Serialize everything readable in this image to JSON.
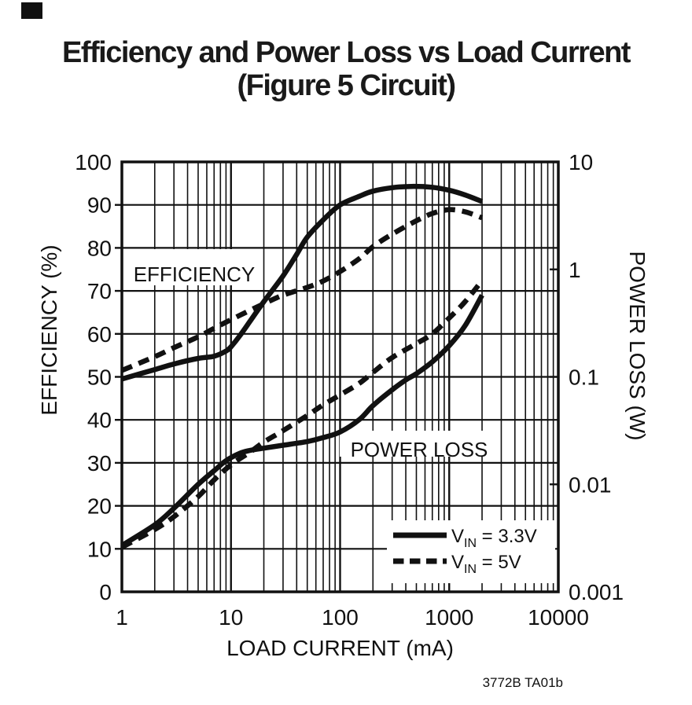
{
  "page": {
    "background": "#ffffff",
    "ink": "#111111",
    "corner_mark": "black-rectangle"
  },
  "title": {
    "line1": "Efficiency and Power Loss vs Load Current",
    "line2": "(Figure 5 Circuit)"
  },
  "caption": "3772B TA01b",
  "axes": {
    "x": {
      "label": "LOAD CURRENT (mA)",
      "scale": "log",
      "min": 1,
      "max": 10000,
      "ticks": [
        "1",
        "10",
        "100",
        "1000",
        "10000"
      ]
    },
    "y_left": {
      "label": "EFFICIENCY (%)",
      "scale": "linear",
      "min": 0,
      "max": 100,
      "ticks": [
        "100",
        "90",
        "80",
        "70",
        "60",
        "50",
        "40",
        "30",
        "20",
        "10",
        "0"
      ]
    },
    "y_right": {
      "label": "POWER LOSS (W)",
      "scale": "log",
      "min": 0.001,
      "max": 10,
      "ticks": [
        "10",
        "1",
        "0.1",
        "0.01",
        "0.001"
      ]
    }
  },
  "plot_labels": {
    "efficiency": "EFFICIENCY",
    "power_loss": "POWER LOSS"
  },
  "legend": {
    "items": [
      {
        "style": "solid",
        "v": "V",
        "sub": "IN",
        "rest": " = 3.3V"
      },
      {
        "style": "dashed",
        "v": "V",
        "sub": "IN",
        "rest": " = 5V"
      }
    ]
  },
  "chart_data": {
    "type": "line",
    "title": "Efficiency and Power Loss vs Load Current (Figure 5 Circuit)",
    "xlabel": "LOAD CURRENT (mA)",
    "x_axis": {
      "scale": "log",
      "range": [
        1,
        10000
      ]
    },
    "y_left_axis": {
      "label": "EFFICIENCY (%)",
      "scale": "linear",
      "range": [
        0,
        100
      ],
      "grid_step": 10
    },
    "y_right_axis": {
      "label": "POWER LOSS (W)",
      "scale": "log",
      "range": [
        0.001,
        10
      ]
    },
    "grid": "full log-x grid, horizontal lines every 10%",
    "legend_position": "inside-bottom-right",
    "series": [
      {
        "name": "Efficiency, VIN = 3.3V",
        "axis": "left",
        "line": "solid",
        "points": [
          [
            1,
            49.5
          ],
          [
            2,
            51.7
          ],
          [
            3,
            53
          ],
          [
            5,
            54.3
          ],
          [
            7,
            54.8
          ],
          [
            9,
            56
          ],
          [
            10,
            57
          ],
          [
            12,
            59.5
          ],
          [
            15,
            63
          ],
          [
            20,
            67.5
          ],
          [
            30,
            73.5
          ],
          [
            40,
            78.5
          ],
          [
            50,
            82.5
          ],
          [
            70,
            86.5
          ],
          [
            100,
            90
          ],
          [
            150,
            92
          ],
          [
            200,
            93.2
          ],
          [
            300,
            94
          ],
          [
            450,
            94.3
          ],
          [
            700,
            94.1
          ],
          [
            1000,
            93.4
          ],
          [
            1400,
            92.3
          ],
          [
            2000,
            90.8
          ]
        ]
      },
      {
        "name": "Efficiency, VIN = 5V",
        "axis": "left",
        "line": "dashed",
        "points": [
          [
            1,
            51.5
          ],
          [
            2,
            54.7
          ],
          [
            3,
            56.8
          ],
          [
            5,
            59.3
          ],
          [
            7,
            61.3
          ],
          [
            10,
            63.3
          ],
          [
            15,
            65.5
          ],
          [
            20,
            67
          ],
          [
            30,
            69
          ],
          [
            50,
            70.8
          ],
          [
            70,
            72.3
          ],
          [
            100,
            74.5
          ],
          [
            150,
            77.5
          ],
          [
            200,
            80.3
          ],
          [
            300,
            83.2
          ],
          [
            500,
            86.3
          ],
          [
            700,
            88
          ],
          [
            1000,
            88.9
          ],
          [
            1400,
            88.4
          ],
          [
            2000,
            87
          ]
        ]
      },
      {
        "name": "Power Loss, VIN = 3.3V",
        "axis": "right",
        "line": "solid",
        "points": [
          [
            1,
            0.0027
          ],
          [
            2,
            0.0042
          ],
          [
            3,
            0.006
          ],
          [
            5,
            0.01
          ],
          [
            7,
            0.0134
          ],
          [
            9,
            0.0166
          ],
          [
            12,
            0.0194
          ],
          [
            15,
            0.0207
          ],
          [
            20,
            0.0217
          ],
          [
            30,
            0.0231
          ],
          [
            50,
            0.025
          ],
          [
            70,
            0.0272
          ],
          [
            100,
            0.0307
          ],
          [
            150,
            0.04
          ],
          [
            200,
            0.054
          ],
          [
            300,
            0.0758
          ],
          [
            400,
            0.0936
          ],
          [
            500,
            0.107
          ],
          [
            700,
            0.138
          ],
          [
            1000,
            0.195
          ],
          [
            1400,
            0.3
          ],
          [
            2000,
            0.575
          ]
        ]
      },
      {
        "name": "Power Loss, VIN = 5V",
        "axis": "right",
        "line": "dashed",
        "points": [
          [
            1,
            0.0026
          ],
          [
            2,
            0.0038
          ],
          [
            3,
            0.005
          ],
          [
            5,
            0.0077
          ],
          [
            7,
            0.011
          ],
          [
            10,
            0.0152
          ],
          [
            15,
            0.02
          ],
          [
            20,
            0.0247
          ],
          [
            30,
            0.0316
          ],
          [
            50,
            0.0437
          ],
          [
            70,
            0.0549
          ],
          [
            100,
            0.0679
          ],
          [
            150,
            0.0871
          ],
          [
            200,
            0.11
          ],
          [
            300,
            0.151
          ],
          [
            500,
            0.204
          ],
          [
            700,
            0.251
          ],
          [
            1000,
            0.353
          ],
          [
            1400,
            0.501
          ],
          [
            2000,
            0.787
          ]
        ]
      }
    ]
  }
}
